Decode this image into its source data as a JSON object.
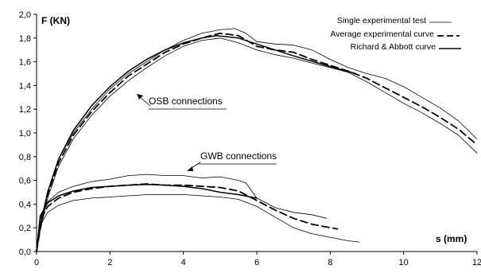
{
  "chart_data": {
    "type": "line",
    "xlabel": "s (mm)",
    "ylabel": "F (KN)",
    "xlim": [
      0,
      12
    ],
    "ylim": [
      0,
      2.0
    ],
    "x_ticks": [
      "0",
      "2",
      "4",
      "6",
      "8",
      "10",
      "12"
    ],
    "y_ticks": [
      "0,0",
      "0,2",
      "0,4",
      "0,6",
      "0,8",
      "1,0",
      "1,2",
      "1,4",
      "1,6",
      "1,8",
      "2,0"
    ],
    "grid": false,
    "legend": {
      "placement": "top-right",
      "entries": [
        {
          "label": "Single experimental test",
          "style": "thin"
        },
        {
          "label": "Average experimental curve",
          "style": "dashed"
        },
        {
          "label": "Richard & Abbott curve",
          "style": "solid"
        }
      ]
    },
    "annotations": [
      {
        "text": "OSB connections",
        "arrow_to": [
          2.5,
          1.28
        ]
      },
      {
        "text": "GWB connections",
        "arrow_to": [
          4.1,
          0.64
        ]
      }
    ],
    "series": [
      {
        "group": "OSB",
        "style": "thin",
        "x": [
          0,
          0.1,
          0.3,
          0.6,
          1.0,
          1.5,
          2.0,
          2.5,
          3.0,
          3.5,
          4.0,
          4.5,
          5.0,
          5.4,
          5.7,
          6.0,
          6.5,
          7.0,
          7.5,
          8.0,
          8.5,
          9.0,
          9.5,
          10.0,
          10.5,
          11.0,
          11.5,
          12.0
        ],
        "y": [
          0,
          0.2,
          0.5,
          0.78,
          1.0,
          1.2,
          1.37,
          1.5,
          1.6,
          1.7,
          1.78,
          1.84,
          1.87,
          1.88,
          1.84,
          1.77,
          1.75,
          1.74,
          1.7,
          1.62,
          1.55,
          1.5,
          1.46,
          1.39,
          1.3,
          1.21,
          1.1,
          0.95
        ]
      },
      {
        "group": "OSB",
        "style": "thin",
        "x": [
          0,
          0.1,
          0.3,
          0.6,
          1.0,
          1.5,
          2.0,
          2.5,
          3.0,
          3.5,
          4.0,
          4.5,
          5.0,
          5.5,
          6.0,
          6.5,
          7.0,
          7.5,
          8.0,
          8.5,
          9.0,
          9.5,
          10.0,
          10.5,
          11.0,
          11.5,
          12.0
        ],
        "y": [
          0,
          0.18,
          0.45,
          0.72,
          0.95,
          1.15,
          1.31,
          1.44,
          1.55,
          1.65,
          1.73,
          1.78,
          1.8,
          1.76,
          1.7,
          1.66,
          1.63,
          1.59,
          1.55,
          1.51,
          1.43,
          1.34,
          1.25,
          1.17,
          1.08,
          0.98,
          0.83
        ]
      },
      {
        "group": "OSB",
        "style": "dashed",
        "x": [
          0,
          0.1,
          0.3,
          0.6,
          1.0,
          1.5,
          2.0,
          2.5,
          3.0,
          3.5,
          4.0,
          4.5,
          5.0,
          5.5,
          6.0,
          6.5,
          7.0,
          7.5,
          8.0,
          8.5,
          9.0,
          9.5,
          10.0,
          10.5,
          11.0,
          11.5,
          12.0
        ],
        "y": [
          0,
          0.19,
          0.48,
          0.75,
          0.98,
          1.18,
          1.34,
          1.48,
          1.58,
          1.68,
          1.75,
          1.8,
          1.84,
          1.82,
          1.73,
          1.7,
          1.68,
          1.62,
          1.57,
          1.52,
          1.46,
          1.38,
          1.3,
          1.22,
          1.13,
          1.03,
          0.9
        ]
      },
      {
        "group": "OSB",
        "style": "solid",
        "x": [
          0,
          0.1,
          0.3,
          0.6,
          1.0,
          1.5,
          2.0,
          2.5,
          3.0,
          3.5,
          4.0,
          4.5,
          4.9,
          5.5,
          6.0,
          7.0,
          8.0,
          8.7
        ],
        "y": [
          0,
          0.22,
          0.5,
          0.78,
          1.02,
          1.23,
          1.39,
          1.52,
          1.62,
          1.7,
          1.76,
          1.8,
          1.82,
          1.8,
          1.75,
          1.65,
          1.56,
          1.5
        ]
      },
      {
        "group": "GWB",
        "style": "thin",
        "x": [
          0,
          0.1,
          0.3,
          0.6,
          1.0,
          1.5,
          2.0,
          2.5,
          3.0,
          3.5,
          4.0,
          4.5,
          5.0,
          5.5,
          5.7,
          6.0,
          6.5,
          7.0,
          7.5,
          7.9
        ],
        "y": [
          0,
          0.28,
          0.42,
          0.5,
          0.55,
          0.59,
          0.61,
          0.64,
          0.65,
          0.64,
          0.64,
          0.62,
          0.63,
          0.6,
          0.58,
          0.45,
          0.37,
          0.33,
          0.31,
          0.28
        ]
      },
      {
        "group": "GWB",
        "style": "thin",
        "x": [
          0,
          0.1,
          0.3,
          0.6,
          1.0,
          1.5,
          2.0,
          2.5,
          3.0,
          3.5,
          4.0,
          4.5,
          5.0,
          5.5,
          6.0,
          6.5,
          7.0,
          7.5,
          8.0,
          8.5,
          8.8
        ],
        "y": [
          0,
          0.22,
          0.33,
          0.39,
          0.43,
          0.45,
          0.46,
          0.47,
          0.48,
          0.48,
          0.48,
          0.47,
          0.46,
          0.44,
          0.38,
          0.29,
          0.2,
          0.15,
          0.12,
          0.09,
          0.08
        ]
      },
      {
        "group": "GWB",
        "style": "dashed",
        "x": [
          0,
          0.1,
          0.3,
          0.6,
          1.0,
          1.5,
          2.0,
          2.5,
          3.0,
          3.5,
          4.0,
          4.5,
          5.0,
          5.5,
          6.0,
          6.5,
          7.0,
          7.5,
          8.2
        ],
        "y": [
          0,
          0.26,
          0.38,
          0.45,
          0.5,
          0.53,
          0.55,
          0.56,
          0.57,
          0.56,
          0.56,
          0.55,
          0.54,
          0.51,
          0.43,
          0.35,
          0.28,
          0.23,
          0.19
        ]
      },
      {
        "group": "GWB",
        "style": "solid",
        "x": [
          0,
          0.1,
          0.3,
          0.6,
          1.0,
          1.5,
          2.0,
          2.5,
          3.0,
          3.5,
          4.0,
          4.5,
          5.0,
          5.5,
          6.0
        ],
        "y": [
          0,
          0.3,
          0.41,
          0.47,
          0.51,
          0.54,
          0.55,
          0.56,
          0.565,
          0.56,
          0.55,
          0.53,
          0.5,
          0.48,
          0.45
        ]
      }
    ]
  }
}
